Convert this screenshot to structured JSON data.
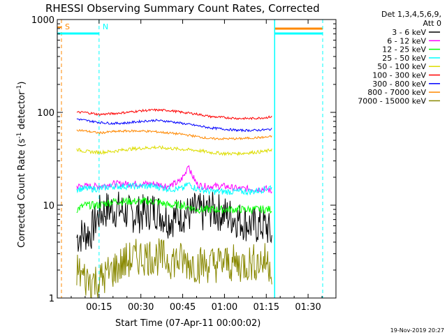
{
  "chart_data": {
    "type": "line",
    "title": "RHESSI Observing Summary Count Rates, Corrected",
    "xlabel": "Start Time (07-Apr-11 00:00:02)",
    "ylabel_main": "Corrected Count Rate (s",
    "ylabel_sup1": "-1",
    "ylabel_mid": " detector",
    "ylabel_sup2": "-1",
    "ylabel_end": ")",
    "yscale": "log",
    "ylim": [
      1,
      1000
    ],
    "xlim_min": [
      0,
      100
    ],
    "x_ticks": [
      {
        "t": 15,
        "label": "00:15"
      },
      {
        "t": 30,
        "label": "00:30"
      },
      {
        "t": 45,
        "label": "00:45"
      },
      {
        "t": 60,
        "label": "01:00"
      },
      {
        "t": 75,
        "label": "01:15"
      },
      {
        "t": 90,
        "label": "01:30"
      }
    ],
    "y_ticks": [
      {
        "v": 1,
        "label": "1"
      },
      {
        "v": 10,
        "label": "10"
      },
      {
        "v": 100,
        "label": "100"
      },
      {
        "v": 1000,
        "label": "1000"
      }
    ],
    "legend_header": [
      "Det 1,3,4,5,6,9,",
      "Att 0"
    ],
    "legend_position": "right",
    "series": [
      {
        "name": "3 - 6 keV",
        "color": "#000000",
        "x": [
          7,
          10,
          12,
          15,
          18,
          22,
          26,
          30,
          35,
          40,
          45,
          48,
          50,
          52,
          55,
          60,
          65,
          70,
          75,
          77
        ],
        "y": [
          4.5,
          5,
          5,
          8,
          9,
          9,
          8,
          8,
          9,
          7,
          8,
          8,
          9,
          8,
          9,
          8,
          7,
          6,
          6,
          4.5
        ]
      },
      {
        "name": "6 - 12 keV",
        "color": "#ff00ff",
        "x": [
          7,
          10,
          15,
          20,
          25,
          30,
          35,
          40,
          44,
          46,
          47,
          48,
          50,
          52,
          55,
          60,
          65,
          70,
          75,
          77
        ],
        "y": [
          16,
          16,
          16,
          17,
          17,
          17,
          17,
          16,
          18,
          22,
          28,
          22,
          17,
          16,
          16,
          16,
          15,
          15,
          15,
          14
        ]
      },
      {
        "name": "12 - 25 keV",
        "color": "#00ff00",
        "x": [
          7,
          10,
          15,
          20,
          25,
          30,
          35,
          40,
          45,
          50,
          55,
          60,
          65,
          70,
          75,
          77
        ],
        "y": [
          9,
          10,
          10,
          11,
          11,
          11,
          11,
          10,
          10,
          9,
          9,
          9,
          9,
          9,
          9,
          9
        ]
      },
      {
        "name": "25 - 50 keV",
        "color": "#00ffff",
        "x": [
          7,
          10,
          15,
          20,
          25,
          30,
          35,
          40,
          45,
          47,
          50,
          55,
          60,
          65,
          70,
          75,
          77
        ],
        "y": [
          15,
          15,
          15,
          16,
          16,
          16,
          16,
          15,
          15,
          17,
          15,
          14,
          14,
          14,
          14,
          15,
          16
        ]
      },
      {
        "name": "50 - 100 keV",
        "color": "#dddd00",
        "x": [
          7,
          10,
          15,
          20,
          25,
          30,
          35,
          40,
          45,
          50,
          55,
          60,
          65,
          70,
          75,
          77
        ],
        "y": [
          40,
          38,
          37,
          38,
          40,
          41,
          42,
          41,
          40,
          39,
          37,
          36,
          36,
          37,
          38,
          40
        ]
      },
      {
        "name": "100 - 300 keV",
        "color": "#ff0000",
        "x": [
          7,
          10,
          15,
          20,
          25,
          30,
          35,
          40,
          45,
          50,
          55,
          60,
          65,
          70,
          75,
          77
        ],
        "y": [
          100,
          100,
          95,
          97,
          100,
          104,
          106,
          105,
          100,
          96,
          90,
          88,
          86,
          86,
          88,
          90
        ]
      },
      {
        "name": "300 - 800 keV",
        "color": "#0000ff",
        "x": [
          7,
          10,
          15,
          20,
          25,
          30,
          35,
          40,
          45,
          50,
          55,
          60,
          65,
          70,
          75,
          77
        ],
        "y": [
          85,
          82,
          78,
          76,
          77,
          80,
          82,
          80,
          76,
          72,
          68,
          66,
          64,
          64,
          65,
          66
        ]
      },
      {
        "name": "800 - 7000 keV",
        "color": "#ff8800",
        "x": [
          7,
          10,
          15,
          20,
          25,
          30,
          35,
          40,
          45,
          50,
          55,
          60,
          65,
          70,
          75,
          77
        ],
        "y": [
          65,
          63,
          60,
          62,
          63,
          63,
          62,
          60,
          58,
          55,
          52,
          52,
          52,
          53,
          54,
          55
        ]
      },
      {
        "name": "7000 - 15000 keV",
        "color": "#888800",
        "x": [
          7,
          10,
          15,
          20,
          25,
          30,
          35,
          40,
          45,
          50,
          55,
          60,
          65,
          70,
          75,
          77
        ],
        "y": [
          2,
          1.6,
          1.5,
          2,
          2.5,
          2.8,
          2.8,
          2.6,
          2.5,
          2.3,
          2.3,
          2.4,
          2.3,
          2.4,
          2.5,
          2.2
        ]
      }
    ],
    "markers": [
      {
        "label": "S",
        "color": "#ff8800",
        "t": 1.5,
        "style": "dashed"
      },
      {
        "label": "N",
        "color": "#00ffff",
        "t": 15,
        "style": "dashed"
      }
    ],
    "footer_date": "19-Nov-2019 20:27"
  }
}
